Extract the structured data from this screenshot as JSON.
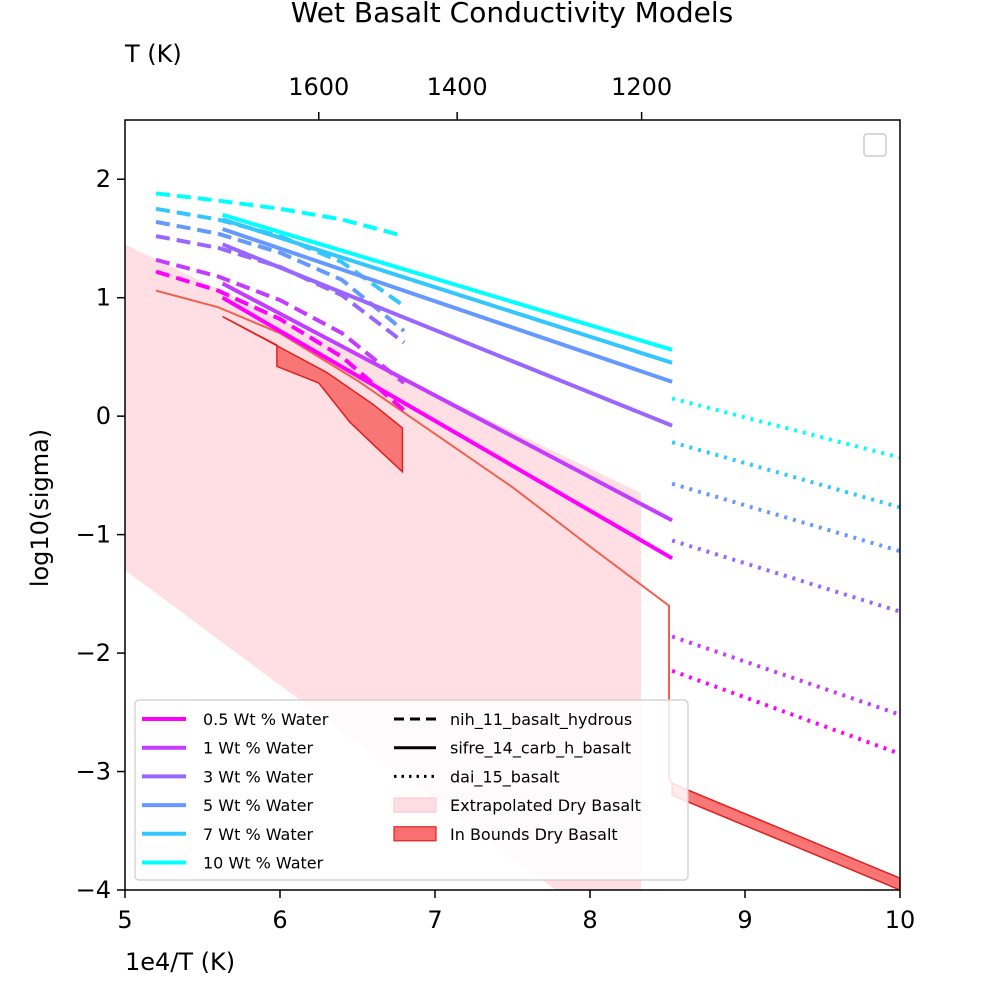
{
  "chart_data": {
    "type": "line",
    "title": "Wet Basalt Conductivity Models",
    "xlabel": "1e4/T (K)",
    "ylabel": "log10(sigma)",
    "top_xlabel": "T (K)",
    "xlim": [
      5,
      10
    ],
    "ylim": [
      -4,
      2.5
    ],
    "xticks": [
      5,
      6,
      7,
      8,
      9,
      10
    ],
    "yticks": [
      -4,
      -3,
      -2,
      -1,
      0,
      1,
      2
    ],
    "xtick_labels": [
      "5",
      "6",
      "7",
      "8",
      "9",
      "10"
    ],
    "ytick_labels": [
      "−4",
      "−3",
      "−2",
      "−1",
      "0",
      "1",
      "2"
    ],
    "top_ticks": [
      {
        "label": "1600",
        "x": 6.25
      },
      {
        "label": "1400",
        "x": 7.143
      },
      {
        "label": "1200",
        "x": 8.333
      }
    ],
    "grid": false,
    "colors": {
      "0.5": "#ff00ff",
      "1": "#c43cff",
      "3": "#9966ff",
      "5": "#6699ff",
      "7": "#33c6ff",
      "10": "#00ffff",
      "extrapolated": "#ffdde2",
      "inbounds_fill": "#f87070",
      "inbounds_edge": "#e02020"
    },
    "series": [
      {
        "model": "nih_11_basalt_hydrous",
        "style": "dashed",
        "water": "10",
        "x": [
          5.2,
          5.6,
          6.0,
          6.4,
          6.8
        ],
        "y": [
          1.88,
          1.82,
          1.75,
          1.66,
          1.52
        ]
      },
      {
        "model": "nih_11_basalt_hydrous",
        "style": "dashed",
        "water": "7",
        "x": [
          5.2,
          5.6,
          6.0,
          6.4,
          6.8
        ],
        "y": [
          1.75,
          1.66,
          1.52,
          1.3,
          0.93
        ]
      },
      {
        "model": "nih_11_basalt_hydrous",
        "style": "dashed",
        "water": "5",
        "x": [
          5.2,
          5.6,
          6.0,
          6.4,
          6.8
        ],
        "y": [
          1.64,
          1.54,
          1.38,
          1.15,
          0.72
        ]
      },
      {
        "model": "nih_11_basalt_hydrous",
        "style": "dashed",
        "water": "3",
        "x": [
          5.2,
          5.6,
          6.0,
          6.4,
          6.8
        ],
        "y": [
          1.52,
          1.42,
          1.26,
          1.02,
          0.62
        ]
      },
      {
        "model": "nih_11_basalt_hydrous",
        "style": "dashed",
        "water": "1",
        "x": [
          5.2,
          5.6,
          6.0,
          6.4,
          6.8
        ],
        "y": [
          1.32,
          1.18,
          0.98,
          0.7,
          0.28
        ]
      },
      {
        "model": "nih_11_basalt_hydrous",
        "style": "dashed",
        "water": "0.5",
        "x": [
          5.2,
          5.6,
          6.0,
          6.4,
          6.8
        ],
        "y": [
          1.22,
          1.06,
          0.82,
          0.5,
          0.05
        ]
      },
      {
        "model": "sifre_14_carb_h_basalt",
        "style": "solid",
        "water": "10",
        "x": [
          5.63,
          8.53
        ],
        "y": [
          1.7,
          0.56
        ]
      },
      {
        "model": "sifre_14_carb_h_basalt",
        "style": "solid",
        "water": "7",
        "x": [
          5.63,
          8.53
        ],
        "y": [
          1.66,
          0.45
        ]
      },
      {
        "model": "sifre_14_carb_h_basalt",
        "style": "solid",
        "water": "5",
        "x": [
          5.63,
          8.53
        ],
        "y": [
          1.58,
          0.29
        ]
      },
      {
        "model": "sifre_14_carb_h_basalt",
        "style": "solid",
        "water": "3",
        "x": [
          5.63,
          8.53
        ],
        "y": [
          1.45,
          -0.08
        ]
      },
      {
        "model": "sifre_14_carb_h_basalt",
        "style": "solid",
        "water": "1",
        "x": [
          5.63,
          8.53
        ],
        "y": [
          1.12,
          -0.88
        ]
      },
      {
        "model": "sifre_14_carb_h_basalt",
        "style": "solid",
        "water": "0.5",
        "x": [
          5.63,
          8.53
        ],
        "y": [
          1.0,
          -1.2
        ]
      },
      {
        "model": "dai_15_basalt",
        "style": "dotted",
        "water": "10",
        "x": [
          8.53,
          10.0
        ],
        "y": [
          0.15,
          -0.35
        ]
      },
      {
        "model": "dai_15_basalt",
        "style": "dotted",
        "water": "7",
        "x": [
          8.53,
          10.0
        ],
        "y": [
          -0.22,
          -0.77
        ]
      },
      {
        "model": "dai_15_basalt",
        "style": "dotted",
        "water": "5",
        "x": [
          8.53,
          10.0
        ],
        "y": [
          -0.57,
          -1.14
        ]
      },
      {
        "model": "dai_15_basalt",
        "style": "dotted",
        "water": "3",
        "x": [
          8.53,
          10.0
        ],
        "y": [
          -1.05,
          -1.65
        ]
      },
      {
        "model": "dai_15_basalt",
        "style": "dotted",
        "water": "1",
        "x": [
          8.53,
          10.0
        ],
        "y": [
          -1.86,
          -2.52
        ]
      },
      {
        "model": "dai_15_basalt",
        "style": "dotted",
        "water": "0.5",
        "x": [
          8.53,
          10.0
        ],
        "y": [
          -2.15,
          -2.85
        ]
      }
    ],
    "extrapolated_dry_basalt": {
      "polygon": [
        [
          5.0,
          1.45
        ],
        [
          8.33,
          -0.65
        ],
        [
          8.33,
          -4.0
        ],
        [
          7.78,
          -4.0
        ],
        [
          5.0,
          -1.3
        ]
      ]
    },
    "extrapolated_edge_line": {
      "x": [
        5.2,
        5.6,
        6.0,
        6.5,
        7.0,
        7.5,
        8.0,
        8.51,
        8.51,
        8.53,
        10.0
      ],
      "y": [
        1.06,
        0.92,
        0.7,
        0.3,
        -0.15,
        -0.6,
        -1.1,
        -1.6,
        -3.05,
        -3.1,
        -3.95
      ]
    },
    "in_bounds_dry_basalt": [
      {
        "polygon": [
          [
            5.63,
            0.84
          ],
          [
            6.0,
            0.58
          ],
          [
            6.3,
            0.37
          ],
          [
            6.6,
            0.1
          ],
          [
            6.79,
            -0.1
          ],
          [
            6.79,
            -0.47
          ],
          [
            6.65,
            -0.3
          ],
          [
            6.45,
            -0.05
          ],
          [
            6.25,
            0.28
          ],
          [
            5.98,
            0.42
          ],
          [
            5.98,
            0.6
          ],
          [
            5.63,
            0.84
          ]
        ]
      },
      {
        "polygon": [
          [
            8.53,
            -3.1
          ],
          [
            10.0,
            -3.9
          ],
          [
            10.0,
            -4.0
          ],
          [
            8.53,
            -3.2
          ]
        ]
      }
    ],
    "legend": {
      "placement": "lower-left",
      "water_entries": [
        {
          "label": "0.5 Wt % Water",
          "water": "0.5"
        },
        {
          "label": "1 Wt % Water",
          "water": "1"
        },
        {
          "label": "3 Wt % Water",
          "water": "3"
        },
        {
          "label": "5 Wt % Water",
          "water": "5"
        },
        {
          "label": "7 Wt % Water",
          "water": "7"
        },
        {
          "label": "10 Wt % Water",
          "water": "10"
        }
      ],
      "model_entries": [
        {
          "label": "nih_11_basalt_hydrous",
          "style": "dashed"
        },
        {
          "label": "sifre_14_carb_h_basalt",
          "style": "solid"
        },
        {
          "label": "dai_15_basalt",
          "style": "dotted"
        }
      ],
      "patch_entries": [
        {
          "label": "Extrapolated Dry Basalt",
          "kind": "extrapolated"
        },
        {
          "label": "In Bounds Dry Basalt",
          "kind": "inbounds"
        }
      ]
    },
    "empty_legend": {
      "placement": "top-right"
    }
  }
}
